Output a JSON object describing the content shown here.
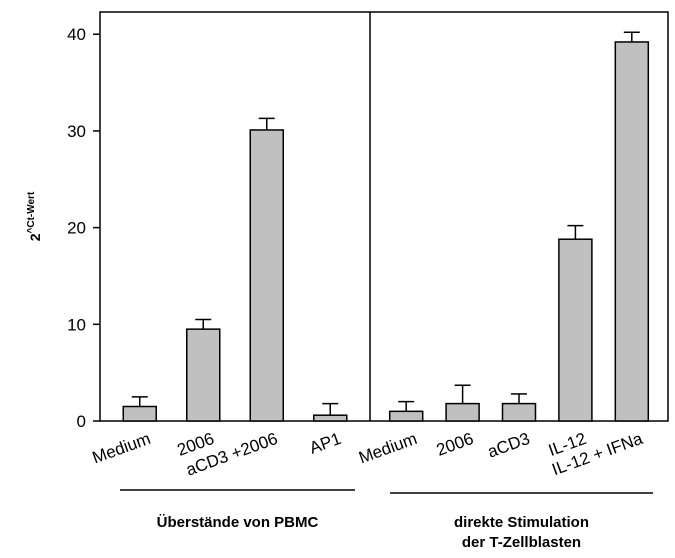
{
  "chart_data": {
    "type": "bar",
    "ylabel": {
      "base": "2",
      "sup": "^Ct-Wert"
    },
    "ylim": [
      0,
      42.3
    ],
    "yticks": [
      0,
      10,
      20,
      30,
      40
    ],
    "color": "#c0c0c0",
    "groups": [
      {
        "label": [
          "Überstände von PBMC"
        ],
        "categories": [
          "Medium",
          "2006",
          "aCD3 +2006",
          "AP1"
        ],
        "values": [
          1.5,
          9.5,
          30.1,
          0.6
        ],
        "errors": [
          1.0,
          1.0,
          1.2,
          1.2
        ]
      },
      {
        "label": [
          "direkte Stimulation",
          "der T-Zellblasten"
        ],
        "categories": [
          "Medium",
          "2006",
          "aCD3",
          "IL-12",
          "IL-12 + IFNa"
        ],
        "values": [
          1.0,
          1.8,
          1.8,
          18.8,
          39.2
        ],
        "errors": [
          1.0,
          1.9,
          1.0,
          1.4,
          1.0
        ]
      }
    ]
  }
}
